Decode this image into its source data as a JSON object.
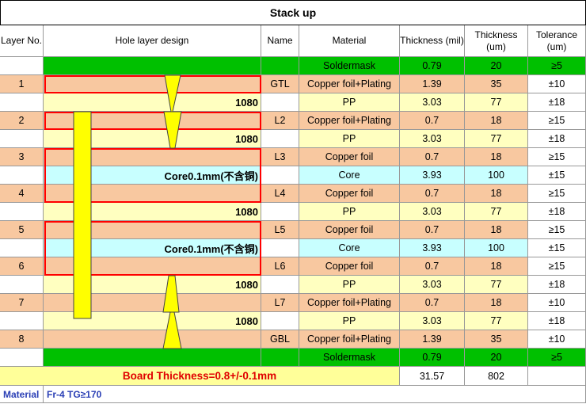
{
  "title": "Stack up",
  "headers": {
    "layer_no": "Layer No.",
    "hole_design": "Hole layer design",
    "name": "Name",
    "material": "Material",
    "thickness_mil": "Thickness (mil)",
    "thickness_um": "Thickness (um)",
    "tolerance": "Tolerance (um)"
  },
  "rows": [
    {
      "layer": "",
      "design": "",
      "name": "",
      "material": "Soldermask",
      "mil": "0.79",
      "um": "20",
      "tol": "≥5",
      "type": "mask"
    },
    {
      "layer": "1",
      "design": "",
      "name": "GTL",
      "material": "Copper foil+Plating",
      "mil": "1.39",
      "um": "35",
      "tol": "±10",
      "type": "copper"
    },
    {
      "layer": "",
      "design": "1080",
      "name": "",
      "material": "PP",
      "mil": "3.03",
      "um": "77",
      "tol": "±18",
      "type": "pp"
    },
    {
      "layer": "2",
      "design": "",
      "name": "L2",
      "material": "Copper foil+Plating",
      "mil": "0.7",
      "um": "18",
      "tol": "≥15",
      "type": "copper"
    },
    {
      "layer": "",
      "design": "1080",
      "name": "",
      "material": "PP",
      "mil": "3.03",
      "um": "77",
      "tol": "±18",
      "type": "pp"
    },
    {
      "layer": "3",
      "design": "",
      "name": "L3",
      "material": "Copper foil",
      "mil": "0.7",
      "um": "18",
      "tol": "≥15",
      "type": "copper"
    },
    {
      "layer": "",
      "design": "Core0.1mm(不含铜)",
      "name": "",
      "material": "Core",
      "mil": "3.93",
      "um": "100",
      "tol": "±15",
      "type": "core"
    },
    {
      "layer": "4",
      "design": "",
      "name": "L4",
      "material": "Copper foil",
      "mil": "0.7",
      "um": "18",
      "tol": "≥15",
      "type": "copper"
    },
    {
      "layer": "",
      "design": "1080",
      "name": "",
      "material": "PP",
      "mil": "3.03",
      "um": "77",
      "tol": "±18",
      "type": "pp"
    },
    {
      "layer": "5",
      "design": "",
      "name": "L5",
      "material": "Copper foil",
      "mil": "0.7",
      "um": "18",
      "tol": "≥15",
      "type": "copper"
    },
    {
      "layer": "",
      "design": "Core0.1mm(不含铜)",
      "name": "",
      "material": "Core",
      "mil": "3.93",
      "um": "100",
      "tol": "±15",
      "type": "core"
    },
    {
      "layer": "6",
      "design": "",
      "name": "L6",
      "material": "Copper foil",
      "mil": "0.7",
      "um": "18",
      "tol": "≥15",
      "type": "copper"
    },
    {
      "layer": "",
      "design": "1080",
      "name": "",
      "material": "PP",
      "mil": "3.03",
      "um": "77",
      "tol": "±18",
      "type": "pp"
    },
    {
      "layer": "7",
      "design": "",
      "name": "L7",
      "material": "Copper foil+Plating",
      "mil": "0.7",
      "um": "18",
      "tol": "±10",
      "type": "copper"
    },
    {
      "layer": "",
      "design": "1080",
      "name": "",
      "material": "PP",
      "mil": "3.03",
      "um": "77",
      "tol": "±18",
      "type": "pp"
    },
    {
      "layer": "8",
      "design": "",
      "name": "GBL",
      "material": "Copper foil+Plating",
      "mil": "1.39",
      "um": "35",
      "tol": "±10",
      "type": "copper"
    },
    {
      "layer": "",
      "design": "",
      "name": "",
      "material": "Soldermask",
      "mil": "0.79",
      "um": "20",
      "tol": "≥5",
      "type": "mask"
    }
  ],
  "board_thickness": "Board Thickness=0.8+/-0.1mm",
  "total_mil": "31.57",
  "total_um": "802",
  "footer": {
    "label": "Material",
    "value": "Fr-4  TG≥170"
  },
  "colors": {
    "mask": "#00c000",
    "copper": "#f8c8a0",
    "pp": "#ffffc0",
    "core": "#c8ffff",
    "highlight": "#ffff99",
    "drill": "#ffff00",
    "box": "#ff0000"
  }
}
